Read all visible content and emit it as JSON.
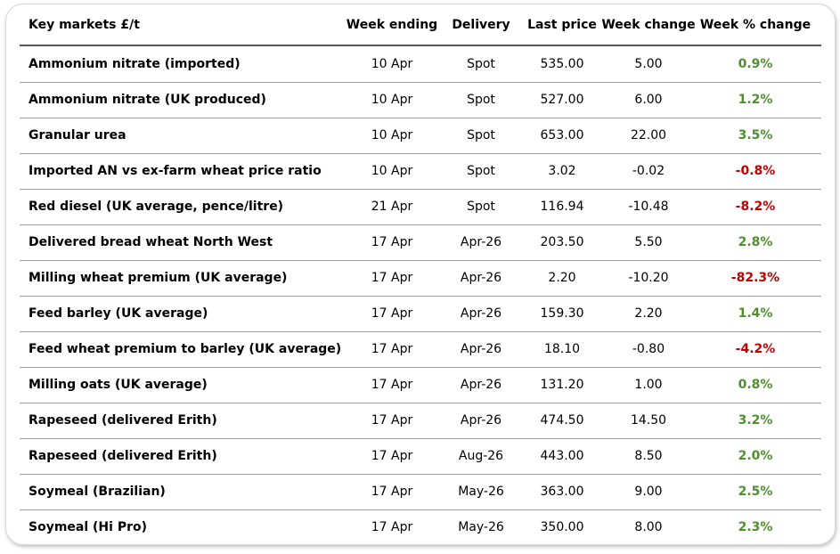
{
  "table": {
    "header": [
      "Key markets £/t",
      "Week ending",
      "Delivery",
      "Last price",
      "Week change",
      "Week % change"
    ],
    "rows": [
      [
        "Ammonium nitrate (imported)",
        "10 Apr",
        "Spot",
        "535.00",
        "5.00",
        "0.9%"
      ],
      [
        "Ammonium nitrate (UK produced)",
        "10 Apr",
        "Spot",
        "527.00",
        "6.00",
        "1.2%"
      ],
      [
        "Granular urea",
        "10 Apr",
        "Spot",
        "653.00",
        "22.00",
        "3.5%"
      ],
      [
        "Imported AN vs ex-farm wheat price ratio",
        "10 Apr",
        "Spot",
        "3.02",
        "-0.02",
        "-0.8%"
      ],
      [
        "Red diesel (UK average, pence/litre)",
        "21 Apr",
        "Spot",
        "116.94",
        "-10.48",
        "-8.2%"
      ],
      [
        "Delivered bread wheat North West",
        "17 Apr",
        "Apr-26",
        "203.50",
        "5.50",
        "2.8%"
      ],
      [
        "Milling wheat premium (UK average)",
        "17 Apr",
        "Apr-26",
        "2.20",
        "-10.20",
        "-82.3%"
      ],
      [
        "Feed barley (UK average)",
        "17 Apr",
        "Apr-26",
        "159.30",
        "2.20",
        "1.4%"
      ],
      [
        "Feed wheat premium to barley (UK average)",
        "17 Apr",
        "Apr-26",
        "18.10",
        "-0.80",
        "-4.2%"
      ],
      [
        "Milling oats (UK average)",
        "17 Apr",
        "Apr-26",
        "131.20",
        "1.00",
        "0.8%"
      ],
      [
        "Rapeseed (delivered Erith)",
        "17 Apr",
        "Apr-26",
        "474.50",
        "14.50",
        "3.2%"
      ],
      [
        "Rapeseed (delivered Erith)",
        "17 Apr",
        "Aug-26",
        "443.00",
        "8.50",
        "2.0%"
      ],
      [
        "Soymeal (Brazilian)",
        "17 Apr",
        "May-26",
        "363.00",
        "9.00",
        "2.5%"
      ],
      [
        "Soymeal (Hi Pro)",
        "17 Apr",
        "May-26",
        "350.00",
        "8.00",
        "2.3%"
      ]
    ]
  }
}
